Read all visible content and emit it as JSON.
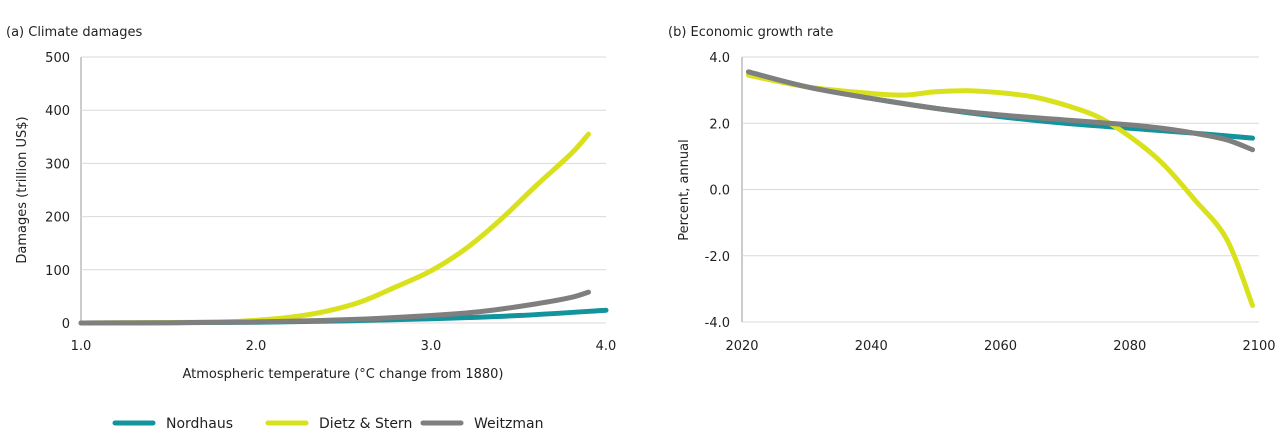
{
  "chart_data": [
    {
      "type": "line",
      "title": "(a) Climate damages",
      "xlabel": "Atmospheric temperature (°C change from 1880)",
      "ylabel": "Damages (trillion US$)",
      "xlim": [
        1.0,
        4.0
      ],
      "ylim": [
        0,
        500
      ],
      "x_ticks": [
        "1.0",
        "2.0",
        "3.0",
        "4.0"
      ],
      "y_ticks": [
        "0",
        "100",
        "200",
        "300",
        "400",
        "500"
      ],
      "grid": "horizontal",
      "series": [
        {
          "name": "Nordhaus",
          "color": "#13939b",
          "points": [
            [
              1.0,
              0
            ],
            [
              1.5,
              0.5
            ],
            [
              2.0,
              1.5
            ],
            [
              2.5,
              4
            ],
            [
              3.0,
              8
            ],
            [
              3.5,
              14
            ],
            [
              4.0,
              24
            ]
          ]
        },
        {
          "name": "Dietz & Stern",
          "color": "#d9e11d",
          "points": [
            [
              1.0,
              0
            ],
            [
              1.5,
              1
            ],
            [
              1.8,
              2
            ],
            [
              2.0,
              5
            ],
            [
              2.2,
              11
            ],
            [
              2.4,
              22
            ],
            [
              2.6,
              40
            ],
            [
              2.8,
              68
            ],
            [
              3.0,
              98
            ],
            [
              3.2,
              140
            ],
            [
              3.4,
              195
            ],
            [
              3.6,
              258
            ],
            [
              3.8,
              318
            ],
            [
              3.9,
              355
            ]
          ]
        },
        {
          "name": "Weitzman",
          "color": "#7f7f7f",
          "points": [
            [
              1.0,
              0
            ],
            [
              1.5,
              0.5
            ],
            [
              2.0,
              2
            ],
            [
              2.5,
              6
            ],
            [
              3.0,
              14
            ],
            [
              3.3,
              22
            ],
            [
              3.6,
              36
            ],
            [
              3.8,
              48
            ],
            [
              3.9,
              58
            ]
          ]
        }
      ]
    },
    {
      "type": "line",
      "title": "(b) Economic growth rate",
      "xlabel": "",
      "ylabel": "Percent, annual",
      "xlim": [
        2020,
        2100
      ],
      "ylim": [
        -4.0,
        4.0
      ],
      "x_ticks": [
        "2020",
        "2040",
        "2060",
        "2080",
        "2100"
      ],
      "y_ticks": [
        "-4.0",
        "-2.0",
        "0.0",
        "2.0",
        "4.0"
      ],
      "grid": "horizontal",
      "series": [
        {
          "name": "Nordhaus",
          "color": "#13939b",
          "points": [
            [
              2021,
              3.55
            ],
            [
              2030,
              3.1
            ],
            [
              2040,
              2.75
            ],
            [
              2050,
              2.45
            ],
            [
              2060,
              2.2
            ],
            [
              2070,
              2.0
            ],
            [
              2080,
              1.85
            ],
            [
              2090,
              1.7
            ],
            [
              2099,
              1.55
            ]
          ]
        },
        {
          "name": "Dietz & Stern",
          "color": "#d9e11d",
          "points": [
            [
              2021,
              3.45
            ],
            [
              2030,
              3.1
            ],
            [
              2040,
              2.9
            ],
            [
              2045,
              2.85
            ],
            [
              2050,
              2.95
            ],
            [
              2055,
              2.98
            ],
            [
              2060,
              2.92
            ],
            [
              2065,
              2.8
            ],
            [
              2070,
              2.55
            ],
            [
              2075,
              2.2
            ],
            [
              2080,
              1.6
            ],
            [
              2085,
              0.8
            ],
            [
              2090,
              -0.3
            ],
            [
              2095,
              -1.5
            ],
            [
              2099,
              -3.5
            ]
          ]
        },
        {
          "name": "Weitzman",
          "color": "#7f7f7f",
          "points": [
            [
              2021,
              3.55
            ],
            [
              2030,
              3.1
            ],
            [
              2040,
              2.75
            ],
            [
              2050,
              2.45
            ],
            [
              2060,
              2.25
            ],
            [
              2070,
              2.1
            ],
            [
              2080,
              1.95
            ],
            [
              2085,
              1.85
            ],
            [
              2090,
              1.7
            ],
            [
              2095,
              1.5
            ],
            [
              2099,
              1.2
            ]
          ]
        }
      ]
    }
  ],
  "legend": [
    {
      "label": "Nordhaus",
      "color": "#13939b"
    },
    {
      "label": "Dietz & Stern",
      "color": "#d9e11d"
    },
    {
      "label": "Weitzman",
      "color": "#7f7f7f"
    }
  ]
}
